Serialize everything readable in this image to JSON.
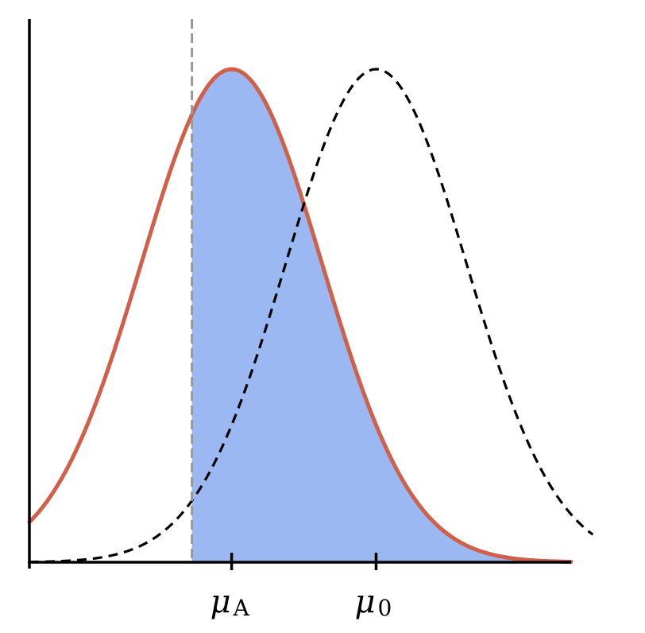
{
  "chart_data": {
    "type": "area",
    "description_free": true,
    "x_range": [
      -3.5,
      4.0
    ],
    "y_range": [
      0,
      1.0
    ],
    "threshold_x": -1.25,
    "tick_labels": [
      {
        "x": -0.7,
        "symbol": "μ",
        "subscript": "A"
      },
      {
        "x": 1.3,
        "symbol": "μ",
        "subscript": "0"
      }
    ],
    "series": [
      {
        "kind": "solid-curve",
        "mean": -0.7,
        "sd": 1.25,
        "x_from": -3.5,
        "x_to": 4.0,
        "shade_from": -1.25
      },
      {
        "kind": "dashed-curve",
        "mean": 1.3,
        "sd": 1.25,
        "x_from": -3.5,
        "x_to": 4.3
      }
    ],
    "colors": {
      "solid_curve": "#d0604a",
      "dashed_curve": "#000000",
      "shade": "#9bb8f3",
      "threshold": "#999999",
      "axis": "#000000"
    }
  }
}
